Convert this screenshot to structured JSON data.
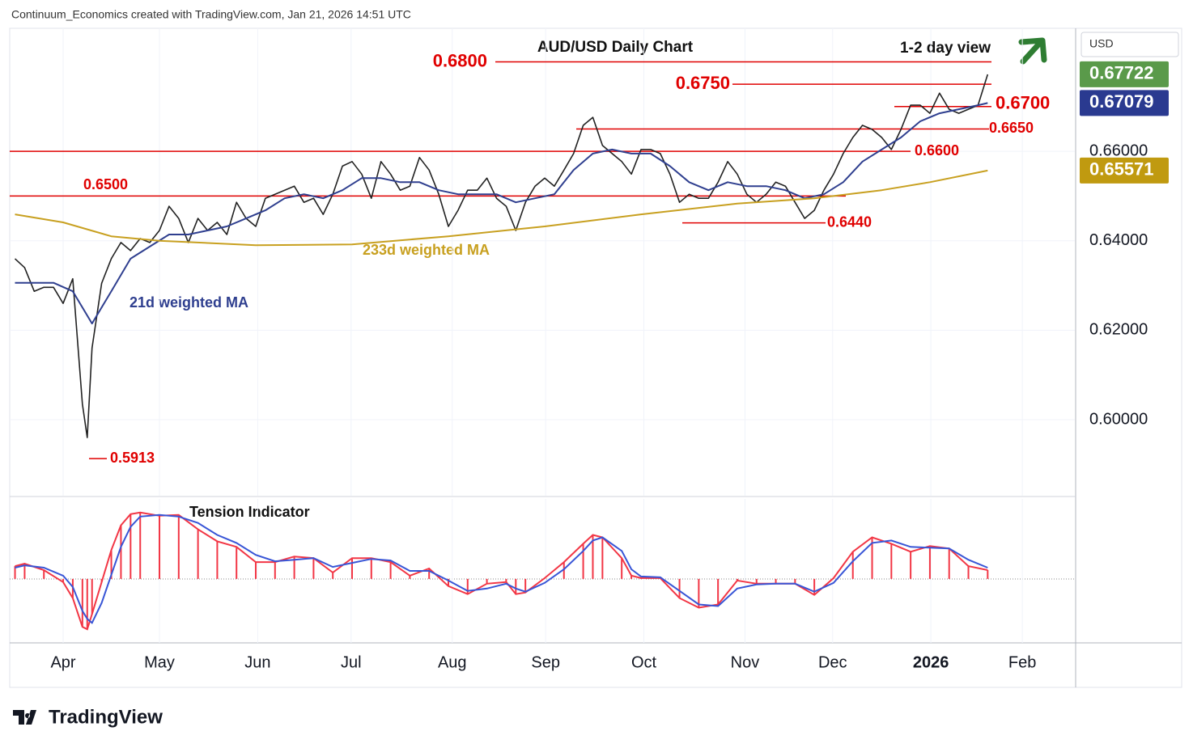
{
  "header": "Continuum_Economics created with TradingView.com, Jan 21, 2026 14:51 UTC",
  "logo": "TradingView",
  "chart_data": {
    "type": "line",
    "title": "AUD/USD Daily Chart",
    "subtitle": "1-2 day view",
    "currency": "USD",
    "xlim": [
      -5.55,
      105.05
    ],
    "xticks": [
      {
        "value": 0,
        "label": "Apr"
      },
      {
        "value": 10,
        "label": "May"
      },
      {
        "value": 20.2,
        "label": "Jun"
      },
      {
        "value": 29.9,
        "label": "Jul"
      },
      {
        "value": 40.4,
        "label": "Aug"
      },
      {
        "value": 50.1,
        "label": "Sep"
      },
      {
        "value": 60.3,
        "label": "Oct"
      },
      {
        "value": 70.8,
        "label": "Nov"
      },
      {
        "value": 79.9,
        "label": "Dec"
      },
      {
        "value": 90.1,
        "label": "2026"
      },
      {
        "value": 99.6,
        "label": "Feb"
      }
    ],
    "ylim": [
      0.583,
      0.6875
    ],
    "yticks": [
      {
        "value": 0.6,
        "label": "0.60000"
      },
      {
        "value": 0.62,
        "label": "0.62000"
      },
      {
        "value": 0.64,
        "label": "0.64000"
      },
      {
        "value": 0.66,
        "label": "0.66000"
      }
    ],
    "grid": true,
    "series": [
      {
        "color": "#222222",
        "x": [
          -5,
          -4,
          -3,
          -2,
          -1,
          0,
          1,
          2,
          2.5,
          3,
          4,
          5,
          6,
          7,
          8,
          9,
          10,
          11,
          12,
          13,
          14,
          15,
          16,
          17,
          18,
          19,
          20,
          21,
          22,
          23,
          24,
          25,
          26,
          27,
          28,
          29,
          30,
          31,
          32,
          33,
          34,
          35,
          36,
          37,
          38,
          39,
          40,
          41,
          42,
          43,
          44,
          45,
          46,
          47,
          48,
          49,
          50,
          51,
          52,
          53,
          54,
          55,
          56,
          57,
          58,
          59,
          60,
          61,
          62,
          63,
          64,
          65,
          66,
          67,
          68,
          69,
          70,
          71,
          72,
          73,
          74,
          75,
          76,
          77,
          78,
          79,
          80,
          81,
          82,
          83,
          84,
          85,
          86,
          87,
          88,
          89,
          90,
          91,
          92,
          93,
          94,
          95,
          96
        ],
        "values": [
          0.636,
          0.634,
          0.6287,
          0.6296,
          0.6296,
          0.626,
          0.6315,
          0.6035,
          0.596,
          0.616,
          0.6305,
          0.636,
          0.6396,
          0.6378,
          0.6405,
          0.6396,
          0.6423,
          0.6477,
          0.645,
          0.6396,
          0.645,
          0.6423,
          0.6441,
          0.6414,
          0.6486,
          0.645,
          0.6432,
          0.6495,
          0.6504,
          0.6513,
          0.6522,
          0.6486,
          0.6495,
          0.6459,
          0.6504,
          0.6567,
          0.6577,
          0.6549,
          0.6495,
          0.6577,
          0.6549,
          0.6513,
          0.6522,
          0.6586,
          0.6558,
          0.6504,
          0.6432,
          0.6468,
          0.6513,
          0.6513,
          0.654,
          0.6495,
          0.6477,
          0.6423,
          0.6486,
          0.6522,
          0.654,
          0.6522,
          0.6558,
          0.6595,
          0.6658,
          0.6676,
          0.6613,
          0.6595,
          0.6577,
          0.6549,
          0.6604,
          0.6604,
          0.6595,
          0.6549,
          0.6486,
          0.6504,
          0.6495,
          0.6495,
          0.6531,
          0.6577,
          0.6549,
          0.6504,
          0.6486,
          0.6504,
          0.6531,
          0.6522,
          0.6486,
          0.645,
          0.6468,
          0.6513,
          0.6549,
          0.6595,
          0.6631,
          0.6658,
          0.6649,
          0.6631,
          0.6604,
          0.6649,
          0.6703,
          0.6703,
          0.6685,
          0.673,
          0.6694,
          0.6685,
          0.6694,
          0.6703,
          0.6772
        ]
      },
      {
        "name": "21d weighted MA",
        "color": "#2f3f8f",
        "x": [
          -5,
          -1,
          1,
          3,
          5,
          7,
          9,
          11,
          13,
          15,
          17,
          19,
          21,
          23,
          25,
          27,
          29,
          31,
          33,
          35,
          37,
          39,
          41,
          43,
          45,
          47,
          49,
          51,
          53,
          55,
          57,
          59,
          61,
          63,
          65,
          67,
          69,
          71,
          73,
          75,
          77,
          79,
          81,
          83,
          85,
          87,
          89,
          91,
          93,
          95,
          96
        ],
        "values": [
          0.6306,
          0.6306,
          0.6287,
          0.6215,
          0.6287,
          0.636,
          0.6387,
          0.6414,
          0.6414,
          0.6423,
          0.6432,
          0.645,
          0.6468,
          0.6495,
          0.6504,
          0.6495,
          0.6513,
          0.654,
          0.654,
          0.6531,
          0.6531,
          0.6513,
          0.6504,
          0.6504,
          0.6504,
          0.6486,
          0.6495,
          0.6504,
          0.6558,
          0.6595,
          0.6604,
          0.6595,
          0.6595,
          0.6567,
          0.6531,
          0.6513,
          0.6531,
          0.6522,
          0.6522,
          0.6513,
          0.6495,
          0.6504,
          0.6531,
          0.6577,
          0.6604,
          0.6631,
          0.6667,
          0.6685,
          0.6694,
          0.6703,
          0.6708
        ]
      },
      {
        "name": "233d weighted MA",
        "color": "#c8a020",
        "x": [
          -5,
          0,
          5,
          10,
          20,
          30,
          40,
          50,
          60,
          70,
          78,
          85,
          90,
          96
        ],
        "values": [
          0.6459,
          0.6441,
          0.641,
          0.64,
          0.639,
          0.6392,
          0.641,
          0.6432,
          0.6459,
          0.6483,
          0.6495,
          0.6513,
          0.6531,
          0.6557
        ]
      }
    ],
    "levels": [
      {
        "value": 0.68,
        "label": "0.6800"
      },
      {
        "value": 0.675,
        "label": "0.6750"
      },
      {
        "value": 0.67,
        "label": "0.6700"
      },
      {
        "value": 0.665,
        "label": "0.6650"
      },
      {
        "value": 0.66,
        "label": "0.6600"
      },
      {
        "value": 0.65,
        "label": "0.6500"
      },
      {
        "value": 0.644,
        "label": "0.6440"
      },
      {
        "value": 0.5913,
        "label": "0.5913"
      }
    ],
    "level_color": "#e00000",
    "price_tags": [
      {
        "value": 0.67722,
        "label": "0.67722",
        "color": "#5a9a4a"
      },
      {
        "value": 0.67079,
        "label": "0.67079",
        "color": "#2a3a90"
      },
      {
        "value": 0.65571,
        "label": "0.65571",
        "color": "#c09a10"
      }
    ],
    "indicator": {
      "title": "Tension Indicator",
      "ylim": [
        -0.8,
        1.0
      ],
      "x": [
        -5,
        -4,
        -2,
        0,
        1,
        2,
        2.5,
        3,
        4,
        5,
        6,
        7,
        8,
        10,
        12,
        14,
        16,
        18,
        20,
        22,
        24,
        26,
        28,
        30,
        32,
        34,
        36,
        38,
        40,
        42,
        44,
        46,
        47,
        48,
        50,
        52,
        54,
        55,
        56,
        58,
        59,
        60,
        62,
        64,
        66,
        68,
        70,
        72,
        74,
        76,
        78,
        80,
        82,
        84,
        86,
        88,
        90,
        92,
        94,
        96
      ],
      "series": [
        {
          "color": "#f23645",
          "values": [
            0.16,
            0.19,
            0.11,
            -0.04,
            -0.24,
            -0.6,
            -0.63,
            -0.44,
            -0.04,
            0.36,
            0.67,
            0.81,
            0.83,
            0.79,
            0.8,
            0.62,
            0.47,
            0.4,
            0.21,
            0.21,
            0.28,
            0.26,
            0.08,
            0.26,
            0.26,
            0.21,
            0.04,
            0.13,
            -0.09,
            -0.19,
            -0.06,
            -0.04,
            -0.19,
            -0.17,
            0.01,
            0.21,
            0.44,
            0.55,
            0.52,
            0.26,
            0.04,
            0.01,
            0.01,
            -0.24,
            -0.36,
            -0.32,
            -0.02,
            -0.06,
            -0.06,
            -0.06,
            -0.2,
            0.01,
            0.34,
            0.52,
            0.44,
            0.34,
            0.41,
            0.38,
            0.16,
            0.11
          ]
        },
        {
          "color": "#3855d6",
          "values": [
            0.14,
            0.17,
            0.14,
            0.04,
            -0.1,
            -0.4,
            -0.5,
            -0.55,
            -0.3,
            0.05,
            0.4,
            0.65,
            0.78,
            0.8,
            0.78,
            0.7,
            0.55,
            0.45,
            0.3,
            0.22,
            0.24,
            0.26,
            0.15,
            0.2,
            0.25,
            0.23,
            0.1,
            0.1,
            -0.02,
            -0.15,
            -0.12,
            -0.06,
            -0.12,
            -0.16,
            -0.05,
            0.12,
            0.35,
            0.48,
            0.52,
            0.35,
            0.12,
            0.03,
            0.02,
            -0.15,
            -0.32,
            -0.34,
            -0.12,
            -0.07,
            -0.06,
            -0.06,
            -0.16,
            -0.05,
            0.22,
            0.45,
            0.48,
            0.4,
            0.39,
            0.38,
            0.24,
            0.14
          ]
        }
      ]
    }
  }
}
